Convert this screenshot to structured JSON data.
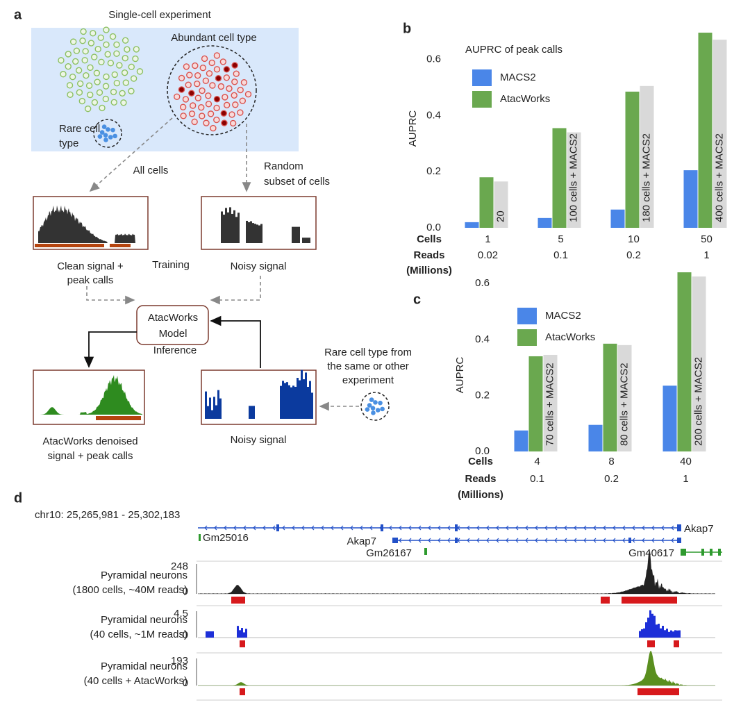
{
  "panel_labels": [
    "a",
    "b",
    "c",
    "d"
  ],
  "diagram": {
    "title": "Single-cell experiment",
    "abundant": "Abundant cell type",
    "rare": [
      "Rare cell",
      "type"
    ],
    "all_cells": "All cells",
    "random_subset": [
      "Random",
      "subset of cells"
    ],
    "clean": [
      "Clean signal +",
      "peak calls"
    ],
    "training": "Training",
    "noisy_top": "Noisy signal",
    "model": [
      "AtacWorks",
      "Model"
    ],
    "inference": "Inference",
    "rare_source": [
      "Rare cell type from",
      "the same or other",
      "experiment"
    ],
    "denoised": [
      "AtacWorks denoised",
      "signal + peak calls"
    ],
    "noisy_bottom": "Noisy signal"
  },
  "chart_data": [
    {
      "type": "bar",
      "title": "AUPRC of peak calls",
      "ylabel": "AUPRC",
      "x_label": "Cells",
      "categories": [
        "1",
        "5",
        "10",
        "50"
      ],
      "reads_label": [
        "Reads",
        "(Millions)"
      ],
      "reads": [
        0.02,
        0.1,
        0.2,
        1
      ],
      "series": [
        {
          "name": "MACS2",
          "color": "#4a86e8",
          "values": [
            0.02,
            0.035,
            0.065,
            0.205
          ]
        },
        {
          "name": "AtacWorks",
          "color": "#6aa84f",
          "values": [
            0.18,
            0.355,
            0.485,
            0.695
          ]
        }
      ],
      "reference": {
        "color": "#d9d9d9",
        "values": [
          0.165,
          0.34,
          0.505,
          0.67
        ],
        "labels": [
          "20",
          "100 cells + MACS2",
          "180 cells + MACS2",
          "400 cells + MACS2"
        ]
      },
      "ylim": [
        0,
        0.7
      ],
      "yticks": [
        {
          "value": 0,
          "label": "0.0"
        },
        0.2,
        0.4,
        0.6
      ],
      "grid": false,
      "legend": "upper left"
    },
    {
      "type": "bar",
      "ylabel": "AUPRC",
      "x_label": "Cells",
      "categories": [
        "4",
        "8",
        "40"
      ],
      "reads_label": [
        "Reads",
        "(Millions)"
      ],
      "reads": [
        0.1,
        0.2,
        1
      ],
      "series": [
        {
          "name": "MACS2",
          "color": "#4a86e8",
          "values": [
            0.075,
            0.095,
            0.235
          ]
        },
        {
          "name": "AtacWorks",
          "color": "#6aa84f",
          "values": [
            0.34,
            0.385,
            0.64
          ]
        }
      ],
      "reference": {
        "color": "#d9d9d9",
        "values": [
          0.345,
          0.38,
          0.625
        ],
        "labels": [
          "70 cells + MACS2",
          "80 cells + MACS2",
          "200 cells + MACS2"
        ]
      },
      "ylim": [
        0,
        0.66
      ],
      "yticks": [
        {
          "value": 0,
          "label": "0.0"
        },
        0.2,
        0.4,
        0.6
      ],
      "grid": false,
      "legend": "upper left"
    }
  ],
  "browser": {
    "locus": "chr10: 25,265,981 - 25,302,183",
    "genes": [
      "Akap7",
      "Gm25016",
      "Akap7",
      "Gm26167",
      "Gm40617"
    ],
    "tracks": [
      {
        "label": [
          "Pyramidal neurons",
          "(1800 cells, ~40M reads)"
        ],
        "max": 248,
        "min": 0
      },
      {
        "label": [
          "Pyramidal neurons",
          "(40 cells, ~1M reads)"
        ],
        "max": 4.5,
        "min": 0
      },
      {
        "label": [
          "Pyramidal neurons",
          "(40 cells + AtacWorks)"
        ],
        "max": 193,
        "min": 0
      }
    ]
  }
}
